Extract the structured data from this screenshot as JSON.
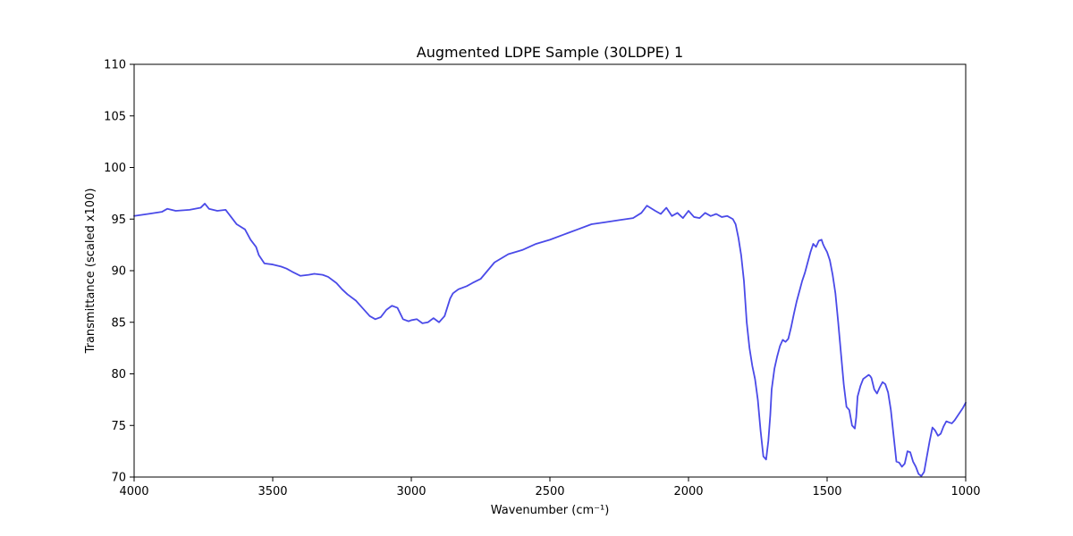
{
  "chart_data": {
    "type": "line",
    "title": "Augmented LDPE Sample (30LDPE) 1",
    "xlabel": "Wavenumber (cm⁻¹)",
    "ylabel": "Transmittance (scaled x100)",
    "xlim": [
      4000,
      1000
    ],
    "ylim": [
      70,
      110
    ],
    "x_reversed": true,
    "xticks": [
      4000,
      3500,
      3000,
      2500,
      2000,
      1500,
      1000
    ],
    "yticks": [
      70,
      75,
      80,
      85,
      90,
      95,
      100,
      105,
      110
    ],
    "grid": false,
    "series": [
      {
        "color": "#4a4ae8",
        "x": [
          4000,
          3950,
          3900,
          3880,
          3850,
          3800,
          3760,
          3745,
          3730,
          3700,
          3670,
          3650,
          3630,
          3600,
          3580,
          3560,
          3550,
          3530,
          3500,
          3470,
          3450,
          3430,
          3400,
          3370,
          3350,
          3320,
          3300,
          3270,
          3250,
          3230,
          3200,
          3180,
          3150,
          3130,
          3110,
          3090,
          3070,
          3050,
          3030,
          3010,
          3000,
          2980,
          2960,
          2940,
          2920,
          2900,
          2880,
          2860,
          2850,
          2830,
          2800,
          2780,
          2750,
          2700,
          2650,
          2600,
          2550,
          2500,
          2450,
          2400,
          2350,
          2300,
          2250,
          2200,
          2170,
          2150,
          2120,
          2100,
          2080,
          2060,
          2040,
          2020,
          2000,
          1980,
          1960,
          1940,
          1920,
          1900,
          1880,
          1860,
          1840,
          1830,
          1820,
          1810,
          1800,
          1790,
          1780,
          1770,
          1760,
          1750,
          1740,
          1730,
          1720,
          1712,
          1705,
          1700,
          1690,
          1680,
          1670,
          1660,
          1650,
          1640,
          1630,
          1620,
          1610,
          1600,
          1590,
          1580,
          1570,
          1560,
          1550,
          1540,
          1530,
          1520,
          1515,
          1510,
          1500,
          1490,
          1480,
          1470,
          1460,
          1450,
          1440,
          1430,
          1420,
          1410,
          1400,
          1395,
          1390,
          1380,
          1370,
          1360,
          1350,
          1345,
          1340,
          1330,
          1320,
          1310,
          1300,
          1290,
          1280,
          1270,
          1260,
          1250,
          1240,
          1230,
          1220,
          1210,
          1200,
          1190,
          1180,
          1170,
          1160,
          1150,
          1140,
          1130,
          1120,
          1110,
          1100,
          1090,
          1080,
          1070,
          1060,
          1050,
          1040,
          1030,
          1020,
          1010,
          1000
        ],
        "y": [
          95.3,
          95.5,
          95.7,
          96.0,
          95.8,
          95.9,
          96.1,
          96.5,
          96.0,
          95.8,
          95.9,
          95.2,
          94.5,
          94.0,
          93.0,
          92.3,
          91.5,
          90.7,
          90.6,
          90.4,
          90.2,
          89.9,
          89.5,
          89.6,
          89.7,
          89.6,
          89.4,
          88.8,
          88.2,
          87.7,
          87.1,
          86.5,
          85.6,
          85.3,
          85.5,
          86.2,
          86.6,
          86.4,
          85.3,
          85.1,
          85.2,
          85.3,
          84.9,
          85.0,
          85.4,
          85.0,
          85.6,
          87.3,
          87.8,
          88.2,
          88.5,
          88.8,
          89.2,
          90.8,
          91.6,
          92.0,
          92.6,
          93.0,
          93.5,
          94.0,
          94.5,
          94.7,
          94.9,
          95.1,
          95.6,
          96.3,
          95.8,
          95.5,
          96.1,
          95.3,
          95.6,
          95.1,
          95.8,
          95.2,
          95.1,
          95.6,
          95.3,
          95.5,
          95.2,
          95.3,
          95.0,
          94.5,
          93.2,
          91.5,
          89.0,
          85.0,
          82.5,
          80.8,
          79.5,
          77.5,
          74.5,
          72.0,
          71.7,
          73.5,
          76.0,
          78.5,
          80.5,
          81.7,
          82.7,
          83.3,
          83.1,
          83.4,
          84.5,
          85.8,
          87.0,
          88.0,
          89.0,
          89.8,
          90.8,
          91.8,
          92.6,
          92.3,
          92.9,
          93.0,
          92.6,
          92.3,
          91.8,
          91.0,
          89.6,
          87.8,
          85.0,
          82.0,
          79.0,
          76.8,
          76.5,
          75.0,
          74.7,
          75.8,
          77.8,
          78.8,
          79.5,
          79.7,
          79.9,
          79.8,
          79.6,
          78.5,
          78.1,
          78.7,
          79.2,
          79.0,
          78.2,
          76.5,
          74.0,
          71.5,
          71.4,
          71.0,
          71.3,
          72.5,
          72.4,
          71.5,
          71.0,
          70.3,
          70.1,
          70.5,
          72.0,
          73.5,
          74.8,
          74.5,
          74.0,
          74.2,
          74.9,
          75.4,
          75.3,
          75.2,
          75.5,
          75.9,
          76.3,
          76.7,
          77.2
        ]
      }
    ]
  }
}
